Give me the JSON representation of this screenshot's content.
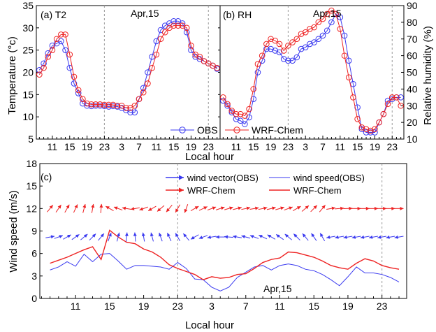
{
  "colors": {
    "obs": "#3a3af0",
    "model": "#ee2222",
    "axis": "#000000",
    "grid": "#999999"
  },
  "panels": {
    "a": {
      "label": "(a) T2",
      "date": "Apr,15"
    },
    "b": {
      "label": "(b) RH",
      "date": "Apr,15"
    },
    "c": {
      "label": "(c)",
      "date": "Apr,15"
    }
  },
  "legends": {
    "top": {
      "obs": "OBS",
      "model": "WRF-Chem"
    },
    "bottom": {
      "vec_obs": "wind vector(OBS)",
      "spd_obs": "wind speed(OBS)",
      "vec_model": "WRF-Chem",
      "spd_model": "WRF-Chem"
    }
  },
  "chart_data": [
    {
      "type": "line",
      "title": "(a) T2",
      "xlabel": "Local hour",
      "ylabel": "Temperature (°c)",
      "x_tick_labels": [
        "11",
        "15",
        "19",
        "23",
        "3",
        "7",
        "11",
        "15",
        "19",
        "23"
      ],
      "x": [
        8,
        9,
        10,
        11,
        12,
        13,
        14,
        15,
        16,
        17,
        18,
        19,
        20,
        21,
        22,
        23,
        24,
        25,
        26,
        27,
        28,
        29,
        30,
        31,
        32,
        33,
        34,
        35,
        36,
        37,
        38,
        39,
        40,
        41,
        42,
        43,
        44,
        45,
        46,
        47,
        48,
        49
      ],
      "ylim": [
        5,
        35
      ],
      "yticks": [
        5,
        10,
        15,
        20,
        25,
        30,
        35
      ],
      "marker_lines_x": [
        23,
        47
      ],
      "series": [
        {
          "name": "OBS",
          "values": [
            20.5,
            22,
            24.3,
            26,
            26.5,
            27,
            25,
            21,
            17.5,
            15.3,
            13,
            12.5,
            12.4,
            12.5,
            12.5,
            12.4,
            12.3,
            12.4,
            12.3,
            12,
            11.5,
            11,
            11,
            14,
            16.5,
            20,
            23.5,
            27,
            29.5,
            30.5,
            31,
            31.5,
            31.5,
            31,
            29,
            25,
            23.5,
            23,
            22.5,
            22,
            21.5,
            20.8
          ]
        },
        {
          "name": "WRF-Chem",
          "values": [
            19.5,
            21,
            23.5,
            25,
            27.5,
            28.5,
            28.5,
            24,
            19,
            16,
            14,
            13,
            12.8,
            12.8,
            12.8,
            12.7,
            12.7,
            12.7,
            12.5,
            12.5,
            12,
            12,
            12.5,
            14,
            15.5,
            17.5,
            21,
            24,
            27.5,
            29,
            30,
            30.5,
            30.5,
            30.5,
            30,
            26,
            24,
            23.5,
            22.5,
            22,
            21.5,
            21
          ]
        }
      ]
    },
    {
      "type": "line",
      "title": "(b) RH",
      "xlabel": "Local hour",
      "ylabel": "Relative humidity (%)",
      "x_tick_labels": [
        "11",
        "15",
        "19",
        "23",
        "3",
        "7",
        "11",
        "15",
        "19",
        "23"
      ],
      "x": [
        8,
        9,
        10,
        11,
        12,
        13,
        14,
        15,
        16,
        17,
        18,
        19,
        20,
        21,
        22,
        23,
        24,
        25,
        26,
        27,
        28,
        29,
        30,
        31,
        32,
        33,
        34,
        35,
        36,
        37,
        38,
        39,
        40,
        41,
        42,
        43,
        44,
        45,
        46,
        47,
        48,
        49
      ],
      "ylim": [
        10,
        90
      ],
      "yticks": [
        10,
        20,
        30,
        40,
        50,
        60,
        70,
        80,
        90
      ],
      "marker_lines_x": [
        23,
        47
      ],
      "series": [
        {
          "name": "OBS",
          "values": [
            33,
            30,
            26,
            22,
            21,
            19,
            23,
            34,
            50,
            57,
            64,
            64,
            63,
            62,
            58,
            57,
            57,
            59,
            64,
            65,
            67,
            68,
            70,
            72,
            75,
            80,
            85,
            83,
            72,
            57,
            43,
            29,
            16,
            14,
            14,
            14,
            20,
            25,
            33,
            34,
            35,
            35
          ]
        },
        {
          "name": "WRF-Chem",
          "values": [
            35,
            31,
            27,
            25,
            25,
            24,
            28,
            40,
            55,
            60,
            67,
            70,
            69,
            67,
            63,
            66,
            68,
            70,
            73,
            74,
            76,
            77,
            80,
            82,
            85,
            87,
            85,
            76,
            60,
            47,
            35,
            22,
            17,
            16,
            15,
            16,
            20,
            25,
            31,
            35,
            35,
            30
          ]
        }
      ]
    },
    {
      "type": "line",
      "title": "(c)",
      "xlabel": "Local hour",
      "ylabel": "Wind speed (m/s)",
      "x_tick_labels": [
        "11",
        "15",
        "19",
        "23",
        "3",
        "7",
        "11",
        "15",
        "19",
        "23"
      ],
      "x": [
        8,
        9,
        10,
        11,
        12,
        13,
        14,
        15,
        16,
        17,
        18,
        19,
        20,
        21,
        22,
        23,
        24,
        25,
        26,
        27,
        28,
        29,
        30,
        31,
        32,
        33,
        34,
        35,
        36,
        37,
        38,
        39,
        40,
        41,
        42,
        43,
        44,
        45,
        46,
        47,
        48,
        49
      ],
      "ylim": [
        0,
        18
      ],
      "yticks": [
        0,
        3,
        6,
        9,
        12,
        15,
        18
      ],
      "marker_lines_x": [
        23,
        47
      ],
      "series": [
        {
          "name": "wind speed(OBS)",
          "values": [
            3.8,
            4.2,
            4.9,
            4.3,
            5.9,
            4.9,
            5.9,
            6.0,
            5.0,
            3.9,
            4.4,
            4.4,
            4.3,
            4.2,
            3.9,
            4.8,
            4.0,
            2.6,
            2.5,
            1.5,
            1.0,
            1.5,
            2.8,
            3.5,
            4.2,
            4.4,
            3.8,
            4.4,
            4.6,
            4.4,
            3.9,
            3.7,
            3.2,
            2.5,
            1.7,
            2.9,
            4.2,
            3.4,
            3.4,
            3.2,
            2.8,
            2.2
          ]
        },
        {
          "name": "WRF-Chem",
          "values": [
            4.7,
            5.1,
            5.5,
            6.0,
            6.5,
            6.9,
            5.2,
            9.1,
            8.2,
            7.5,
            7.3,
            6.6,
            6.2,
            5.5,
            4.5,
            4.0,
            3.6,
            3.2,
            2.5,
            2.9,
            2.7,
            2.8,
            3.2,
            3.3,
            4.0,
            4.8,
            5.2,
            5.4,
            6.2,
            6.1,
            5.8,
            5.5,
            5.0,
            4.4,
            4.1,
            3.9,
            4.7,
            5.3,
            5.0,
            4.4,
            4.1,
            3.9
          ]
        }
      ],
      "wind_vectors": [
        {
          "name": "wind vector(OBS)",
          "y_baseline": 8.2,
          "directions_deg": [
            80,
            70,
            60,
            55,
            50,
            45,
            40,
            20,
            15,
            5,
            -5,
            -10,
            -15,
            -20,
            -25,
            -30,
            -40,
            -120,
            -110,
            -100,
            -90,
            -85,
            -80,
            -75,
            -70,
            -65,
            -60,
            -55,
            -50,
            -45,
            -40,
            -35,
            -30,
            -100,
            -100,
            -100,
            -100,
            -100,
            -100,
            -100,
            -100,
            -100
          ]
        },
        {
          "name": "WRF-Chem",
          "y_baseline": 12.0,
          "directions_deg": [
            40,
            35,
            30,
            25,
            15,
            10,
            5,
            -60,
            -70,
            -80,
            -100,
            -110,
            -120,
            -130,
            -140,
            -150,
            -160,
            60,
            65,
            70,
            72,
            74,
            76,
            78,
            80,
            78,
            76,
            74,
            70,
            60,
            50,
            45,
            40,
            80,
            85,
            88,
            90,
            90,
            90,
            90,
            90,
            90
          ]
        }
      ]
    }
  ]
}
